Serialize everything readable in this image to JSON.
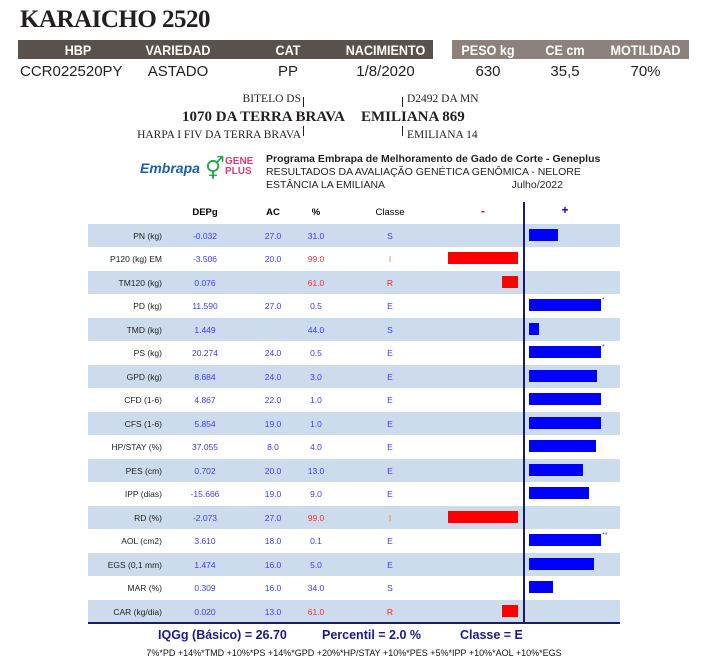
{
  "title": "KARAICHO 2520",
  "header": {
    "labels": [
      "HBP",
      "VARIEDAD",
      "CAT",
      "NACIMIENTO"
    ],
    "labels2": [
      "PESO kg",
      "CE cm",
      "MOTILIDAD"
    ],
    "values": [
      "CCR022520PY",
      "ASTADO",
      "PP",
      "1/8/2020"
    ],
    "values2": [
      "630",
      "35,5",
      "70%"
    ]
  },
  "pedigree": {
    "sire": "1070 DA TERRA BRAVA",
    "sire_sire": "BITELO DS",
    "sire_dam": "HARPA I FIV DA TERRA BRAVA",
    "dam": "EMILIANA 869",
    "dam_sire": "D2492 DA MN",
    "dam_dam": "EMILIANA 14"
  },
  "logos": {
    "embrapa": "Embrapa",
    "geneplus_1": "GENE",
    "geneplus_2": "PLUS"
  },
  "program": {
    "line1": "Programa Embrapa de Melhoramento de Gado de Corte - Geneplus",
    "line2": "RESULTADOS DA AVALIAÇÃO GENÉTICA GENÔMICA - NELORE",
    "line3": "ESTÂNCIA LA EMILIANA",
    "date": "Julho/2022"
  },
  "table": {
    "headers": {
      "depg": "DEPg",
      "ac": "AC",
      "pct": "%",
      "classe": "Classe",
      "minus": "-",
      "plus": "+"
    },
    "colors": {
      "positive": "#0000ff",
      "negative": "#ff0000",
      "alt_row": "#cddcec"
    },
    "rows": [
      {
        "trait": "PN (kg)",
        "depg": "-0.032",
        "ac": "27.0",
        "pct": "31.0",
        "classe": "S",
        "bar": 0.4,
        "mark": ""
      },
      {
        "trait": "P120 (kg) EM",
        "depg": "-3.506",
        "ac": "20.0",
        "pct": "99.0",
        "classe": "I",
        "bar": -0.97,
        "mark": ""
      },
      {
        "trait": "TM120 (kg)",
        "depg": "0.076",
        "ac": "",
        "pct": "61.0",
        "classe": "R",
        "bar": -0.22,
        "mark": ""
      },
      {
        "trait": "PD (kg)",
        "depg": "11.590",
        "ac": "27.0",
        "pct": "0.5",
        "classe": "E",
        "bar": 1.0,
        "mark": "*"
      },
      {
        "trait": "TMD (kg)",
        "depg": "1.449",
        "ac": "",
        "pct": "44.0",
        "classe": "S",
        "bar": 0.14,
        "mark": ""
      },
      {
        "trait": "PS (kg)",
        "depg": "20.274",
        "ac": "24.0",
        "pct": "0.5",
        "classe": "E",
        "bar": 1.0,
        "mark": "*"
      },
      {
        "trait": "GPD (kg)",
        "depg": "8.684",
        "ac": "24.0",
        "pct": "3.0",
        "classe": "E",
        "bar": 0.94,
        "mark": ""
      },
      {
        "trait": "CFD (1-6)",
        "depg": "4.867",
        "ac": "22.0",
        "pct": "1.0",
        "classe": "E",
        "bar": 1.0,
        "mark": ""
      },
      {
        "trait": "CFS (1-6)",
        "depg": "5.854",
        "ac": "19.0",
        "pct": "1.0",
        "classe": "E",
        "bar": 1.0,
        "mark": ""
      },
      {
        "trait": "HP/STAY (%)",
        "depg": "37.055",
        "ac": "8.0",
        "pct": "4.0",
        "classe": "E",
        "bar": 0.93,
        "mark": ""
      },
      {
        "trait": "PES (cm)",
        "depg": "0.702",
        "ac": "20.0",
        "pct": "13.0",
        "classe": "E",
        "bar": 0.75,
        "mark": ""
      },
      {
        "trait": "IPP (dias)",
        "depg": "-15.666",
        "ac": "19.0",
        "pct": "9.0",
        "classe": "E",
        "bar": 0.83,
        "mark": ""
      },
      {
        "trait": "RD (%)",
        "depg": "-2.073",
        "ac": "27.0",
        "pct": "99.0",
        "classe": "I",
        "bar": -0.97,
        "mark": ""
      },
      {
        "trait": "AOL (cm2)",
        "depg": "3.610",
        "ac": "18.0",
        "pct": "0.1",
        "classe": "E",
        "bar": 1.0,
        "mark": "**"
      },
      {
        "trait": "EGS (0,1 mm)",
        "depg": "1.474",
        "ac": "16.0",
        "pct": "5.0",
        "classe": "E",
        "bar": 0.9,
        "mark": ""
      },
      {
        "trait": "MAR (%)",
        "depg": "0.309",
        "ac": "16.0",
        "pct": "34.0",
        "classe": "S",
        "bar": 0.33,
        "mark": ""
      },
      {
        "trait": "CAR (kg/dia)",
        "depg": "0.020",
        "ac": "13.0",
        "pct": "61.0",
        "classe": "R",
        "bar": -0.22,
        "mark": ""
      }
    ]
  },
  "summary": {
    "iqg": "IQGg (Básico) = 26.70",
    "percentil": "Percentil =  2.0 %",
    "classe": "Classe = E",
    "formula": "7%*PD +14%*TMD +10%*PS +14%*GPD +20%*HP/STAY +10%*PES +5%*IPP +10%*AOL +10%*EGS"
  }
}
